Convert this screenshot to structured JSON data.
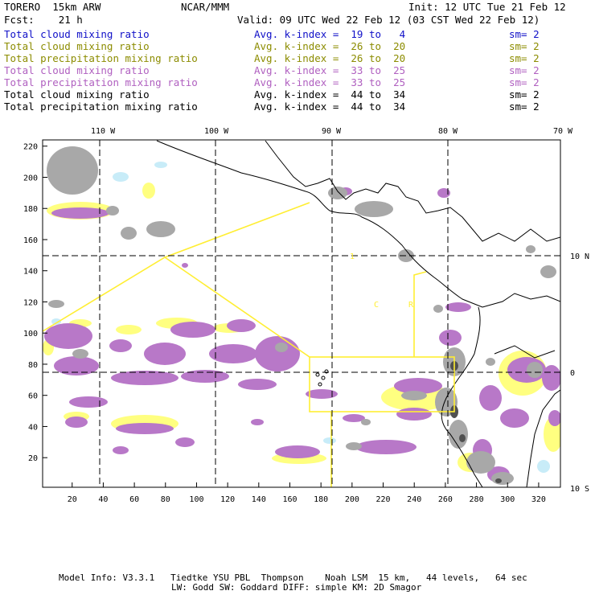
{
  "header": {
    "model": "TORERO  15km ARW",
    "center": "NCAR/MMM",
    "init": "Init: 12 UTC Tue 21 Feb 12",
    "fcst": "Fcst:    21 h",
    "valid": "Valid: 09 UTC Wed 22 Feb 12 (03 CST Wed 22 Feb 12)"
  },
  "legend": [
    {
      "field": "Total cloud mixing ratio",
      "index": "Avg. k-index =  19 to   4",
      "sm": "sm= 2",
      "color": "#1010c8"
    },
    {
      "field": "Total cloud mixing ratio",
      "index": "Avg. k-index =  26 to  20",
      "sm": "sm= 2",
      "color": "#8c8c00"
    },
    {
      "field": "Total precipitation mixing ratio",
      "index": "Avg. k-index =  26 to  20",
      "sm": "sm= 2",
      "color": "#8c8c00"
    },
    {
      "field": "Total cloud mixing ratio",
      "index": "Avg. k-index =  33 to  25",
      "sm": "sm= 2",
      "color": "#b060c0"
    },
    {
      "field": "Total precipitation mixing ratio",
      "index": "Avg. k-index =  33 to  25",
      "sm": "sm= 2",
      "color": "#b060c0"
    },
    {
      "field": "Total cloud mixing ratio",
      "index": "Avg. k-index =  44 to  34",
      "sm": "sm= 2",
      "color": "#000000"
    },
    {
      "field": "Total precipitation mixing ratio",
      "index": "Avg. k-index =  44 to  34",
      "sm": "sm= 2",
      "color": "#000000"
    }
  ],
  "map": {
    "lon_labels": [
      "110 W",
      "100 W",
      "90 W",
      "80 W",
      "70 W"
    ],
    "lat_labels": [
      "10 N",
      "0",
      "10 S"
    ],
    "y_ticks": [
      "220",
      "200",
      "180",
      "160",
      "140",
      "120",
      "100",
      "80",
      "60",
      "40",
      "20"
    ],
    "x_ticks": [
      "20",
      "40",
      "60",
      "80",
      "100",
      "120",
      "140",
      "160",
      "180",
      "200",
      "220",
      "240",
      "260",
      "280",
      "300",
      "320"
    ],
    "x_range": [
      1,
      334
    ],
    "y_range": [
      1,
      224
    ],
    "markers": [
      "1",
      "C",
      "R"
    ],
    "colors": {
      "purple": "#b878c8",
      "yellow": "#ffff80",
      "gray": "#a8a8a8",
      "lightblue": "#c8ecf8",
      "route": "#ffee33"
    }
  },
  "footer": {
    "line1": "Model Info: V3.3.1   Tiedtke YSU PBL  Thompson    Noah LSM  15 km,   44 levels,   64 sec",
    "line2": "LW: Godd SW: Goddard DIFF: simple KM: 2D Smagor"
  }
}
